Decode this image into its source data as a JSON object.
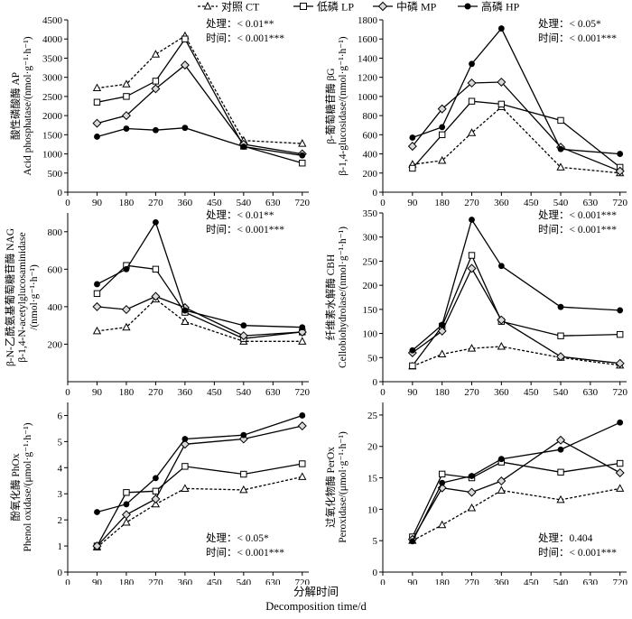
{
  "legend": [
    {
      "key": "CT",
      "label": "对照 CT"
    },
    {
      "key": "LP",
      "label": "低磷 LP"
    },
    {
      "key": "MP",
      "label": "中磷 MP"
    },
    {
      "key": "HP",
      "label": "高磷 HP"
    }
  ],
  "x_title_cn": "分解时间",
  "x_title_en": "Decomposition time/d",
  "chart_data": [
    {
      "type": "line",
      "ylabel_cn": "酸性磷酸酶 AP",
      "ylabel_en": "Acid phosphatase/(nmol·g⁻¹·h⁻¹)",
      "ylabel_en2": "",
      "stat1": "处理：< 0.01**",
      "stat2": "时间：< 0.001***",
      "x": [
        90,
        180,
        270,
        360,
        540,
        720
      ],
      "xticks": [
        0,
        90,
        180,
        270,
        360,
        450,
        540,
        630,
        720
      ],
      "xlim": [
        0,
        740
      ],
      "ylim": [
        0,
        4500
      ],
      "yticks": [
        0,
        500,
        1000,
        1500,
        2000,
        2500,
        3000,
        3500,
        4000,
        4500
      ],
      "series": [
        {
          "name": "CT",
          "values": [
            2720,
            2820,
            3600,
            4080,
            1350,
            1270
          ]
        },
        {
          "name": "LP",
          "values": [
            2350,
            2500,
            2900,
            4000,
            1200,
            760
          ]
        },
        {
          "name": "MP",
          "values": [
            1800,
            2000,
            2700,
            3320,
            1250,
            1000
          ]
        },
        {
          "name": "HP",
          "values": [
            1450,
            1660,
            1620,
            1680,
            1190,
            960
          ]
        }
      ]
    },
    {
      "type": "line",
      "ylabel_cn": "β-葡萄糖苷酶 βG",
      "ylabel_en": "β-1,4-glucosidase/(nmol·g⁻¹·h⁻¹)",
      "ylabel_en2": "",
      "stat1": "处理：< 0.05*",
      "stat2": "时间：< 0.001***",
      "x": [
        90,
        180,
        270,
        360,
        540,
        720
      ],
      "xticks": [
        0,
        90,
        180,
        270,
        360,
        450,
        540,
        630,
        720
      ],
      "xlim": [
        0,
        740
      ],
      "ylim": [
        0,
        1800
      ],
      "yticks": [
        0,
        200,
        400,
        600,
        800,
        1000,
        1200,
        1400,
        1600,
        1800
      ],
      "series": [
        {
          "name": "CT",
          "values": [
            290,
            330,
            620,
            890,
            260,
            200
          ]
        },
        {
          "name": "LP",
          "values": [
            250,
            600,
            950,
            920,
            750,
            260
          ]
        },
        {
          "name": "MP",
          "values": [
            480,
            870,
            1140,
            1150,
            470,
            220
          ]
        },
        {
          "name": "HP",
          "values": [
            570,
            680,
            1340,
            1710,
            450,
            400
          ]
        }
      ]
    },
    {
      "type": "line",
      "ylabel_cn": "β-N-乙酰氨基葡萄糖苷酶 NAG",
      "ylabel_en": "β-1,4-N-acetylglucosaminidase",
      "ylabel_en2": "/(nmol·g⁻¹·h⁻¹)",
      "stat1": "处理：< 0.01**",
      "stat2": "时间：< 0.001***",
      "x": [
        90,
        180,
        270,
        360,
        540,
        720
      ],
      "xticks": [
        0,
        90,
        180,
        270,
        360,
        450,
        540,
        630,
        720
      ],
      "xlim": [
        0,
        740
      ],
      "ylim": [
        0,
        900
      ],
      "yticks": [
        200,
        400,
        600,
        800
      ],
      "series": [
        {
          "name": "CT",
          "values": [
            270,
            290,
            440,
            320,
            215,
            215
          ]
        },
        {
          "name": "LP",
          "values": [
            470,
            620,
            600,
            370,
            230,
            265
          ]
        },
        {
          "name": "MP",
          "values": [
            400,
            385,
            455,
            395,
            245,
            265
          ]
        },
        {
          "name": "HP",
          "values": [
            520,
            600,
            850,
            380,
            300,
            290
          ]
        }
      ]
    },
    {
      "type": "line",
      "ylabel_cn": "纤维素水解酶 CBH",
      "ylabel_en": "Cellobiohydrolase/(nmol·g⁻¹·h⁻¹)",
      "ylabel_en2": "",
      "stat1": "处理：< 0.001***",
      "stat2": "时间：< 0.001***",
      "x": [
        90,
        180,
        270,
        360,
        540,
        720
      ],
      "xticks": [
        0,
        90,
        180,
        270,
        360,
        450,
        540,
        630,
        720
      ],
      "xlim": [
        0,
        740
      ],
      "ylim": [
        0,
        350
      ],
      "yticks": [
        0,
        50,
        100,
        150,
        200,
        250,
        300,
        350
      ],
      "series": [
        {
          "name": "CT",
          "values": [
            32,
            57,
            69,
            73,
            50,
            34
          ]
        },
        {
          "name": "LP",
          "values": [
            33,
            115,
            262,
            125,
            95,
            98
          ]
        },
        {
          "name": "MP",
          "values": [
            60,
            105,
            235,
            128,
            52,
            38
          ]
        },
        {
          "name": "HP",
          "values": [
            65,
            118,
            336,
            240,
            155,
            148
          ]
        }
      ]
    },
    {
      "type": "line",
      "ylabel_cn": "酚氧化酶 PhOx",
      "ylabel_en": "Phenol oxidase/(μmol·g⁻¹·h⁻¹)",
      "ylabel_en2": "",
      "stat1": "处理：< 0.05*",
      "stat2": "时间：< 0.001***",
      "x": [
        90,
        180,
        270,
        360,
        540,
        720
      ],
      "xticks": [
        0,
        90,
        180,
        270,
        360,
        450,
        540,
        630,
        720
      ],
      "xlim": [
        0,
        740
      ],
      "ylim": [
        0,
        6.5
      ],
      "yticks": [
        0,
        1,
        2,
        3,
        4,
        5,
        6
      ],
      "series": [
        {
          "name": "CT",
          "values": [
            0.95,
            1.9,
            2.6,
            3.2,
            3.15,
            3.65
          ]
        },
        {
          "name": "LP",
          "values": [
            1.0,
            3.05,
            3.1,
            4.05,
            3.75,
            4.15
          ]
        },
        {
          "name": "MP",
          "values": [
            1.0,
            2.2,
            2.8,
            4.9,
            5.1,
            5.6
          ]
        },
        {
          "name": "HP",
          "values": [
            2.3,
            2.6,
            3.6,
            5.1,
            5.25,
            6.0
          ]
        }
      ]
    },
    {
      "type": "line",
      "ylabel_cn": "过氧化物酶 PerOx",
      "ylabel_en": "Peroxidase/(μmol·g⁻¹·h⁻¹)",
      "ylabel_en2": "",
      "stat1": "处理：0.404",
      "stat2": "时间：< 0.001***",
      "x": [
        90,
        180,
        270,
        360,
        540,
        720
      ],
      "xticks": [
        0,
        90,
        180,
        270,
        360,
        450,
        540,
        630,
        720
      ],
      "xlim": [
        0,
        740
      ],
      "ylim": [
        0,
        27
      ],
      "yticks": [
        0,
        5,
        10,
        15,
        20,
        25
      ],
      "series": [
        {
          "name": "CT",
          "values": [
            5.0,
            7.5,
            10.2,
            13.0,
            11.5,
            13.3
          ]
        },
        {
          "name": "LP",
          "values": [
            5.6,
            15.6,
            15.0,
            17.5,
            15.9,
            17.3
          ]
        },
        {
          "name": "MP",
          "values": [
            5.2,
            13.4,
            12.7,
            14.5,
            21.0,
            15.8
          ]
        },
        {
          "name": "HP",
          "values": [
            4.9,
            14.2,
            15.3,
            18.0,
            19.5,
            23.8
          ]
        }
      ]
    }
  ]
}
